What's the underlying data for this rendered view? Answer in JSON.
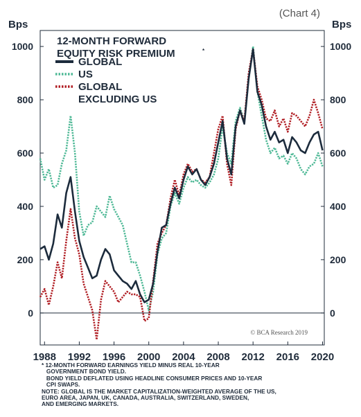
{
  "chart_label": "(Chart 4)",
  "credit": "© BCA Research 2019",
  "notes": [
    "* 12-MONTH FORWARD EARNINGS YIELD MINUS REAL 10-YEAR",
    "   GOVERNMENT BOND YIELD.",
    "   BOND YIELD DEFLATED USING HEADLINE CONSUMER PRICES AND 10-YEAR",
    "   CPI SWAPS.",
    "NOTE: GLOBAL IS THE MARKET CAPITALIZATION-WEIGHTED AVERAGE OF THE US,",
    "EURO AREA, JAPAN, UK, CANADA, AUSTRALIA, SWITZERLAND, SWEDEN,",
    "AND EMERGING MARKETS."
  ],
  "chart_data": {
    "type": "line",
    "title_lines": [
      "12-MONTH FORWARD",
      "EQUITY RISK PREMIUM"
    ],
    "title_mark": "*",
    "ylabel_left": "Bps",
    "ylabel_right": "Bps",
    "ylim": [
      -120,
      1060
    ],
    "yticks": [
      0,
      200,
      400,
      600,
      800,
      1000
    ],
    "xlim": [
      1987.5,
      2020.2
    ],
    "xticks": [
      1988,
      1992,
      1996,
      2000,
      2004,
      2008,
      2012,
      2016,
      2020
    ],
    "zero_line": true,
    "legend_position": "top-left",
    "series": [
      {
        "name": "GLOBAL",
        "color": "#1c2b3c",
        "style": "solid",
        "points": [
          [
            1987.5,
            240
          ],
          [
            1988.0,
            250
          ],
          [
            1988.5,
            200
          ],
          [
            1989.0,
            260
          ],
          [
            1989.5,
            370
          ],
          [
            1990.0,
            320
          ],
          [
            1990.5,
            450
          ],
          [
            1991.0,
            510
          ],
          [
            1991.5,
            380
          ],
          [
            1992.0,
            270
          ],
          [
            1992.5,
            210
          ],
          [
            1993.0,
            170
          ],
          [
            1993.5,
            130
          ],
          [
            1994.0,
            140
          ],
          [
            1994.5,
            200
          ],
          [
            1995.0,
            240
          ],
          [
            1995.5,
            220
          ],
          [
            1996.0,
            160
          ],
          [
            1996.5,
            140
          ],
          [
            1997.0,
            120
          ],
          [
            1997.5,
            110
          ],
          [
            1998.0,
            90
          ],
          [
            1998.5,
            120
          ],
          [
            1999.0,
            70
          ],
          [
            1999.5,
            40
          ],
          [
            2000.0,
            50
          ],
          [
            2000.5,
            110
          ],
          [
            2001.0,
            230
          ],
          [
            2001.5,
            320
          ],
          [
            2002.0,
            330
          ],
          [
            2002.5,
            410
          ],
          [
            2003.0,
            470
          ],
          [
            2003.5,
            430
          ],
          [
            2004.0,
            500
          ],
          [
            2004.5,
            550
          ],
          [
            2005.0,
            520
          ],
          [
            2005.5,
            540
          ],
          [
            2006.0,
            500
          ],
          [
            2006.5,
            480
          ],
          [
            2007.0,
            510
          ],
          [
            2007.5,
            560
          ],
          [
            2008.0,
            640
          ],
          [
            2008.5,
            720
          ],
          [
            2009.0,
            580
          ],
          [
            2009.5,
            520
          ],
          [
            2010.0,
            700
          ],
          [
            2010.5,
            760
          ],
          [
            2011.0,
            710
          ],
          [
            2011.5,
            880
          ],
          [
            2012.0,
            990
          ],
          [
            2012.5,
            830
          ],
          [
            2013.0,
            780
          ],
          [
            2013.5,
            700
          ],
          [
            2014.0,
            650
          ],
          [
            2014.5,
            680
          ],
          [
            2015.0,
            640
          ],
          [
            2015.5,
            650
          ],
          [
            2016.0,
            600
          ],
          [
            2016.5,
            660
          ],
          [
            2017.0,
            640
          ],
          [
            2017.5,
            610
          ],
          [
            2018.0,
            600
          ],
          [
            2018.5,
            640
          ],
          [
            2019.0,
            670
          ],
          [
            2019.5,
            680
          ],
          [
            2020.0,
            610
          ]
        ]
      },
      {
        "name": "US",
        "color": "#4db895",
        "style": "dotted",
        "points": [
          [
            1987.5,
            580
          ],
          [
            1988.0,
            500
          ],
          [
            1988.5,
            540
          ],
          [
            1989.0,
            470
          ],
          [
            1989.5,
            480
          ],
          [
            1990.0,
            560
          ],
          [
            1990.5,
            610
          ],
          [
            1991.0,
            740
          ],
          [
            1991.5,
            600
          ],
          [
            1992.0,
            380
          ],
          [
            1992.5,
            290
          ],
          [
            1993.0,
            330
          ],
          [
            1993.5,
            340
          ],
          [
            1994.0,
            400
          ],
          [
            1994.5,
            380
          ],
          [
            1995.0,
            360
          ],
          [
            1995.5,
            440
          ],
          [
            1996.0,
            390
          ],
          [
            1996.5,
            360
          ],
          [
            1997.0,
            330
          ],
          [
            1997.5,
            260
          ],
          [
            1998.0,
            190
          ],
          [
            1998.5,
            190
          ],
          [
            1999.0,
            140
          ],
          [
            1999.5,
            80
          ],
          [
            2000.0,
            10
          ],
          [
            2000.5,
            80
          ],
          [
            2001.0,
            220
          ],
          [
            2001.5,
            280
          ],
          [
            2002.0,
            300
          ],
          [
            2002.5,
            400
          ],
          [
            2003.0,
            450
          ],
          [
            2003.5,
            410
          ],
          [
            2004.0,
            470
          ],
          [
            2004.5,
            510
          ],
          [
            2005.0,
            490
          ],
          [
            2005.5,
            500
          ],
          [
            2006.0,
            480
          ],
          [
            2006.5,
            470
          ],
          [
            2007.0,
            490
          ],
          [
            2007.5,
            520
          ],
          [
            2008.0,
            580
          ],
          [
            2008.5,
            700
          ],
          [
            2009.0,
            600
          ],
          [
            2009.5,
            560
          ],
          [
            2010.0,
            720
          ],
          [
            2010.5,
            770
          ],
          [
            2011.0,
            720
          ],
          [
            2011.5,
            880
          ],
          [
            2012.0,
            1000
          ],
          [
            2012.5,
            830
          ],
          [
            2013.0,
            740
          ],
          [
            2013.5,
            650
          ],
          [
            2014.0,
            600
          ],
          [
            2014.5,
            620
          ],
          [
            2015.0,
            580
          ],
          [
            2015.5,
            590
          ],
          [
            2016.0,
            560
          ],
          [
            2016.5,
            600
          ],
          [
            2017.0,
            580
          ],
          [
            2017.5,
            540
          ],
          [
            2018.0,
            520
          ],
          [
            2018.5,
            550
          ],
          [
            2019.0,
            560
          ],
          [
            2019.5,
            600
          ],
          [
            2020.0,
            550
          ]
        ]
      },
      {
        "name": "GLOBAL EXCLUDING US",
        "color": "#b01c22",
        "style": "dotted",
        "points": [
          [
            1987.5,
            60
          ],
          [
            1988.0,
            90
          ],
          [
            1988.5,
            30
          ],
          [
            1989.0,
            100
          ],
          [
            1989.5,
            190
          ],
          [
            1990.0,
            130
          ],
          [
            1990.5,
            270
          ],
          [
            1991.0,
            390
          ],
          [
            1991.5,
            280
          ],
          [
            1992.0,
            220
          ],
          [
            1992.5,
            110
          ],
          [
            1993.0,
            60
          ],
          [
            1993.5,
            10
          ],
          [
            1994.0,
            -100
          ],
          [
            1994.5,
            50
          ],
          [
            1995.0,
            120
          ],
          [
            1995.5,
            100
          ],
          [
            1996.0,
            80
          ],
          [
            1996.5,
            40
          ],
          [
            1997.0,
            60
          ],
          [
            1997.5,
            80
          ],
          [
            1998.0,
            70
          ],
          [
            1998.5,
            70
          ],
          [
            1999.0,
            60
          ],
          [
            1999.5,
            -30
          ],
          [
            2000.0,
            -20
          ],
          [
            2000.5,
            120
          ],
          [
            2001.0,
            260
          ],
          [
            2001.5,
            300
          ],
          [
            2002.0,
            330
          ],
          [
            2002.5,
            430
          ],
          [
            2003.0,
            500
          ],
          [
            2003.5,
            440
          ],
          [
            2004.0,
            520
          ],
          [
            2004.5,
            560
          ],
          [
            2005.0,
            530
          ],
          [
            2005.5,
            540
          ],
          [
            2006.0,
            500
          ],
          [
            2006.5,
            490
          ],
          [
            2007.0,
            510
          ],
          [
            2007.5,
            600
          ],
          [
            2008.0,
            690
          ],
          [
            2008.5,
            740
          ],
          [
            2009.0,
            560
          ],
          [
            2009.5,
            480
          ],
          [
            2010.0,
            690
          ],
          [
            2010.5,
            760
          ],
          [
            2011.0,
            720
          ],
          [
            2011.5,
            900
          ],
          [
            2012.0,
            990
          ],
          [
            2012.5,
            850
          ],
          [
            2013.0,
            800
          ],
          [
            2013.5,
            730
          ],
          [
            2014.0,
            720
          ],
          [
            2014.5,
            760
          ],
          [
            2015.0,
            700
          ],
          [
            2015.5,
            730
          ],
          [
            2016.0,
            680
          ],
          [
            2016.5,
            750
          ],
          [
            2017.0,
            740
          ],
          [
            2017.5,
            720
          ],
          [
            2018.0,
            700
          ],
          [
            2018.5,
            740
          ],
          [
            2019.0,
            800
          ],
          [
            2019.5,
            750
          ],
          [
            2020.0,
            690
          ]
        ]
      }
    ]
  }
}
